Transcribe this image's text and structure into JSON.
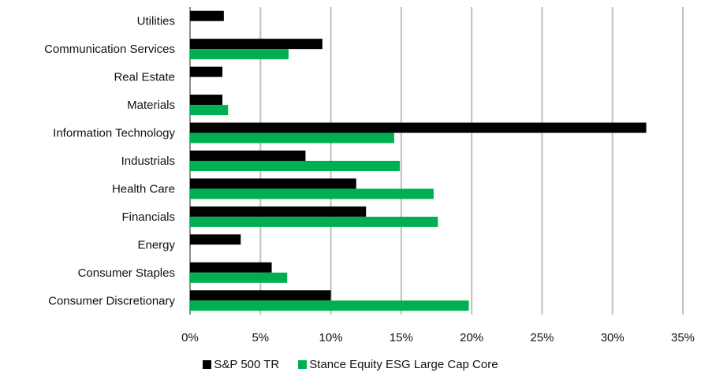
{
  "chart_data": {
    "type": "bar",
    "orientation": "horizontal",
    "categories": [
      "Utilities",
      "Communication Services",
      "Real Estate",
      "Materials",
      "Information Technology",
      "Industrials",
      "Health Care",
      "Financials",
      "Energy",
      "Consumer Staples",
      "Consumer Discretionary"
    ],
    "series": [
      {
        "name": "S&P 500 TR",
        "color": "#000000",
        "values": [
          2.4,
          9.4,
          2.3,
          2.3,
          32.4,
          8.2,
          11.8,
          12.5,
          3.6,
          5.8,
          10.0
        ]
      },
      {
        "name": "Stance Equity ESG Large Cap Core",
        "color": "#00b050",
        "values": [
          0,
          7.0,
          0,
          2.7,
          14.5,
          14.9,
          17.3,
          17.6,
          0,
          6.9,
          19.8
        ]
      }
    ],
    "xlim": [
      0,
      35
    ],
    "xticks": [
      "0%",
      "5%",
      "10%",
      "15%",
      "20%",
      "25%",
      "30%",
      "35%"
    ],
    "grid": "vertical",
    "legend_position": "bottom"
  }
}
